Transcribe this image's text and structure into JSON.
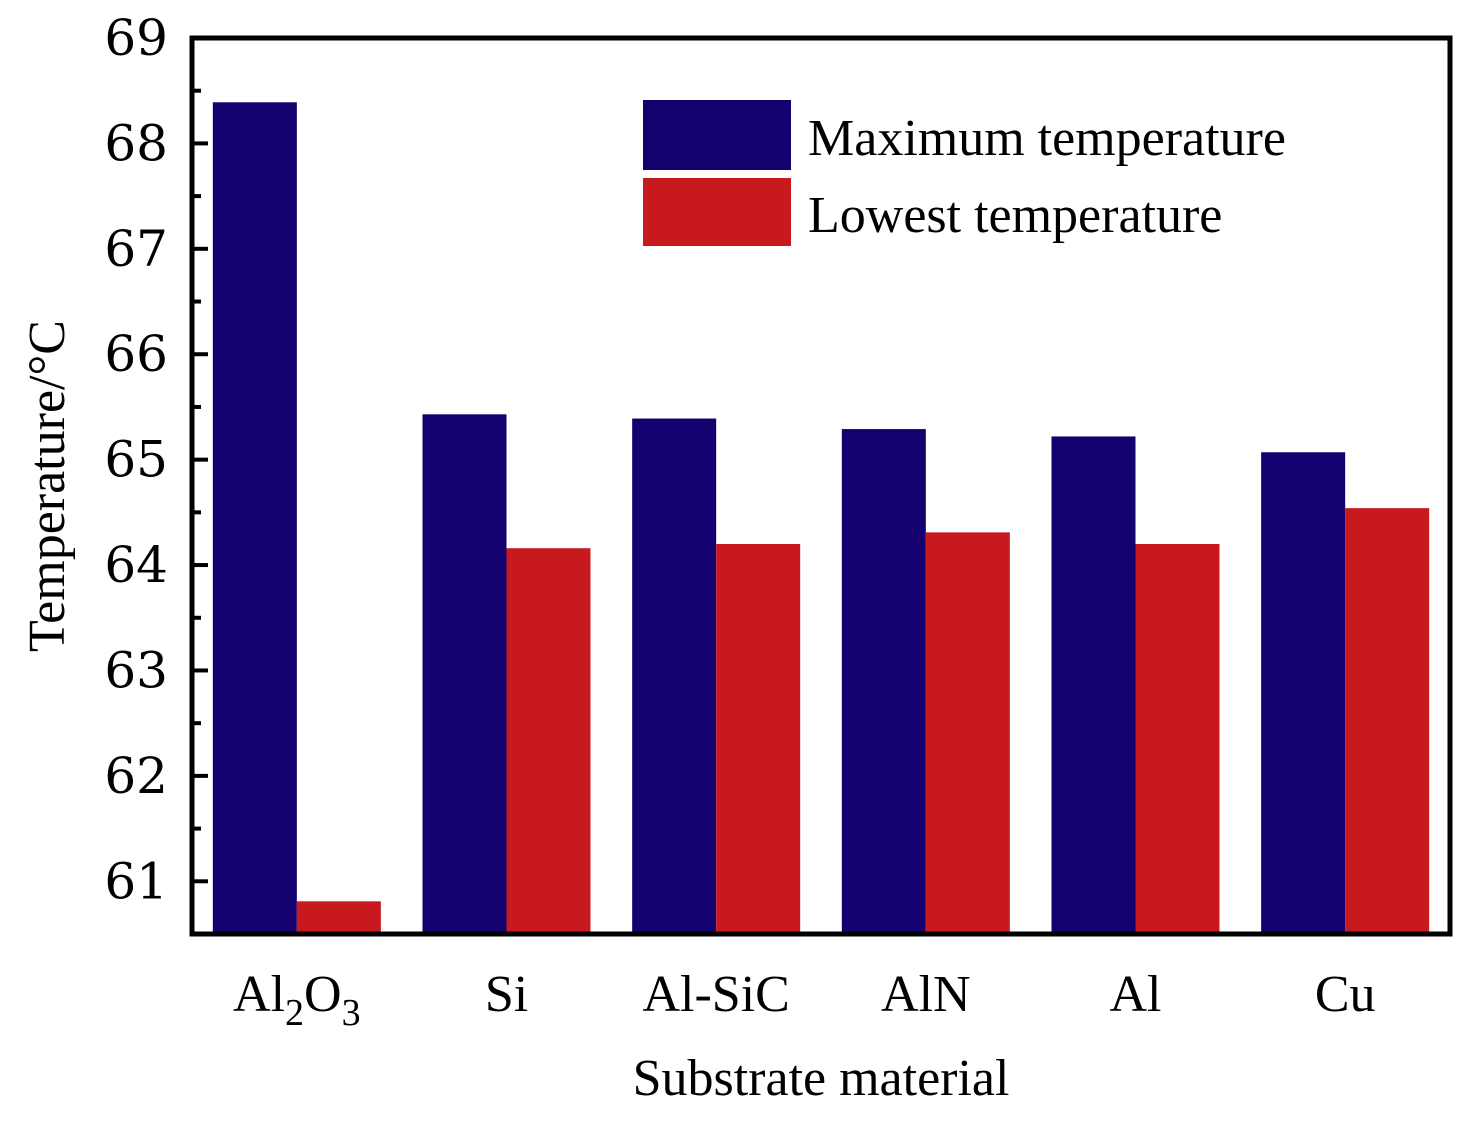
{
  "chart_data": {
    "type": "bar",
    "title": "",
    "xlabel": "Substrate material",
    "ylabel": "Temperature/°C",
    "categories": [
      {
        "base": "Al",
        "sub": "2",
        "mid": "O",
        "sub2": "3"
      },
      {
        "base": "Si"
      },
      {
        "base": "Al-SiC"
      },
      {
        "base": "AlN"
      },
      {
        "base": "Al"
      },
      {
        "base": "Cu"
      }
    ],
    "series": [
      {
        "name": "Maximum temperature",
        "color": "#14006e",
        "values": [
          68.39,
          65.43,
          65.39,
          65.29,
          65.22,
          65.07
        ]
      },
      {
        "name": "Lowest temperature",
        "color": "#c8191e",
        "values": [
          60.81,
          64.16,
          64.2,
          64.31,
          64.2,
          64.54
        ]
      }
    ],
    "ylim": [
      60.5,
      69
    ],
    "yticks": [
      61,
      62,
      63,
      64,
      65,
      66,
      67,
      68,
      69
    ],
    "legend": "top-right",
    "grid": false
  }
}
